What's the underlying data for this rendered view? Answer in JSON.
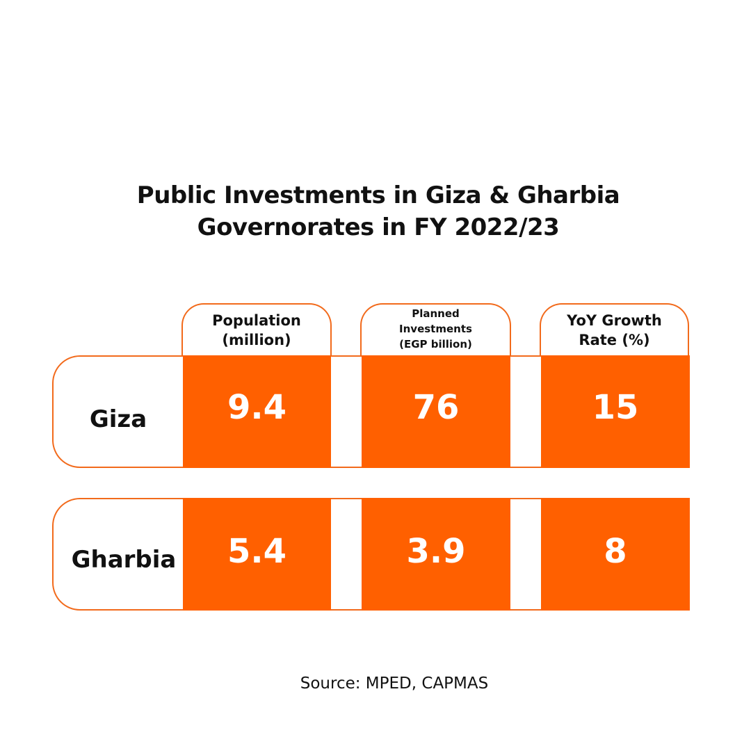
{
  "title": {
    "line1": "Public Investments in Giza & Gharbia",
    "line2": "Governorates in FY 2022/23"
  },
  "colors": {
    "accent": "#ff6000",
    "border": "#f26a1b",
    "text": "#111111",
    "cell_text": "#ffffff"
  },
  "headers": [
    {
      "lines": [
        "Population",
        "(million)"
      ]
    },
    {
      "lines": [
        "Planned",
        "Investments",
        "(EGP billion)"
      ]
    },
    {
      "lines": [
        "YoY Growth",
        "Rate (%)"
      ]
    }
  ],
  "rows": [
    {
      "label": "Giza",
      "values": [
        "9.4",
        "76",
        "15"
      ]
    },
    {
      "label": "Gharbia",
      "values": [
        "5.4",
        "3.9",
        "8"
      ]
    }
  ],
  "source": "Source: MPED, CAPMAS",
  "chart_data": {
    "type": "table",
    "title": "Public Investments in Giza & Gharbia Governorates in FY 2022/23",
    "columns": [
      "Population (million)",
      "Planned Investments (EGP billion)",
      "YoY Growth Rate (%)"
    ],
    "rows": [
      {
        "name": "Giza",
        "values": [
          9.4,
          76,
          15
        ]
      },
      {
        "name": "Gharbia",
        "values": [
          5.4,
          3.9,
          8
        ]
      }
    ]
  }
}
